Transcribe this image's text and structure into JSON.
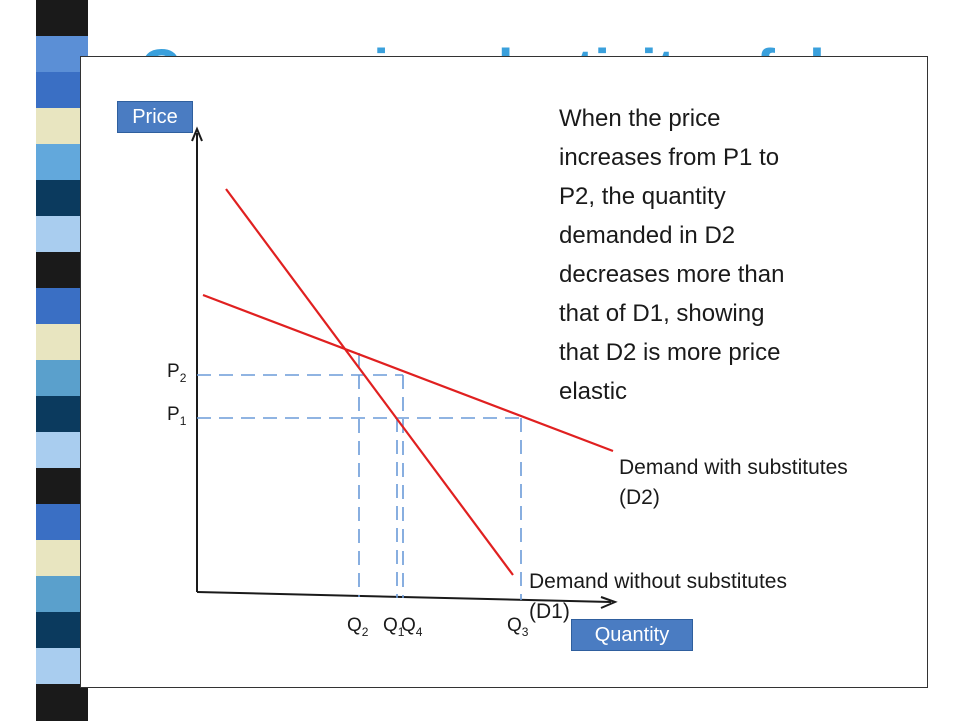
{
  "slide": {
    "title": "Cross-price elasticity of demand",
    "strip_colors": [
      "#1a1a1a",
      "#5b8fd6",
      "#3a6fc4",
      "#e8e5c0",
      "#62a8dc",
      "#0b3a5e",
      "#a9cdef",
      "#1a1a1a",
      "#3a6fc4",
      "#e8e5c0",
      "#5aa0cc",
      "#0b3a5e",
      "#a9cdef",
      "#1a1a1a",
      "#3a6fc4",
      "#e8e5c0",
      "#5aa0cc",
      "#0b3a5e",
      "#a9cdef",
      "#1a1a1a"
    ]
  },
  "diagram": {
    "axis_tags": {
      "price": "Price",
      "quantity": "Quantity"
    },
    "explanation_lines": [
      "When the price",
      "increases from P1 to",
      "P2, the quantity",
      "demanded in D2",
      "decreases more than",
      "that of  D1, showing",
      "that D2 is more price",
      "elastic"
    ],
    "price_levels": [
      {
        "id": "P2",
        "letter": "P",
        "subscript": "2"
      },
      {
        "id": "P1",
        "letter": "P",
        "subscript": "1"
      }
    ],
    "quantity_levels": [
      {
        "id": "Q2",
        "letter": "Q",
        "subscript": "2"
      },
      {
        "id": "Q1",
        "letter": "Q",
        "subscript": "1"
      },
      {
        "id": "Q4",
        "letter": "Q",
        "subscript": "4"
      },
      {
        "id": "Q3",
        "letter": "Q",
        "subscript": "3"
      }
    ],
    "curves": {
      "d2": {
        "label_line1": "Demand with substitutes",
        "label_line2": "(D2)",
        "color": "#e02020"
      },
      "d1": {
        "label_line1": "Demand without substitutes",
        "label_line2": "(D1)",
        "color": "#e02020"
      }
    },
    "guide_color": "#6b9bd8",
    "axis_color": "#1a1a1a"
  }
}
